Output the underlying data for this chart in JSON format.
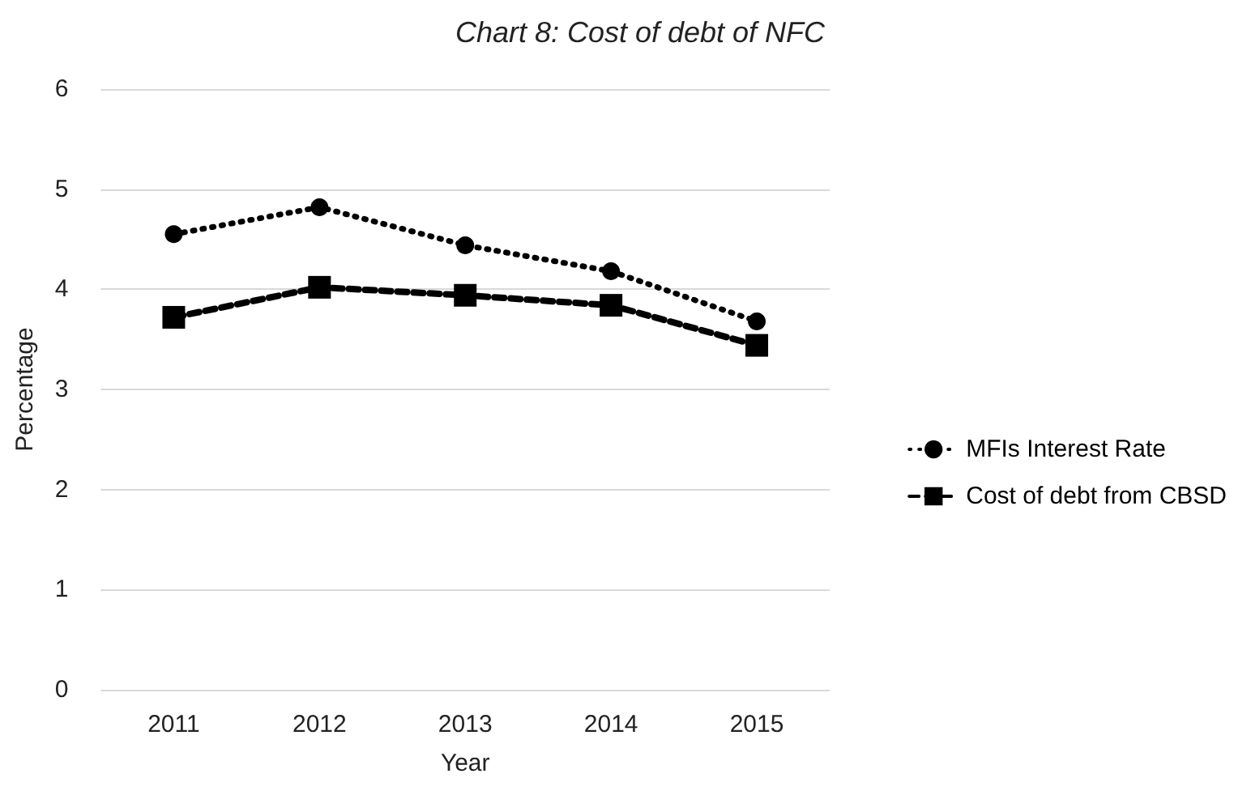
{
  "chart_data": {
    "type": "line",
    "title": "Chart 8: Cost of debt of NFC",
    "xlabel": "Year",
    "ylabel": "Percentage",
    "categories": [
      "2011",
      "2012",
      "2013",
      "2014",
      "2015"
    ],
    "series": [
      {
        "name": "MFIs Interest Rate",
        "color": "#000000",
        "marker": "circle",
        "line_style": "dotted",
        "values": [
          4.55,
          4.82,
          4.44,
          4.18,
          3.68
        ]
      },
      {
        "name": "Cost of debt from CBSD",
        "color": "#000000",
        "marker": "square",
        "line_style": "dashed",
        "values": [
          3.72,
          4.02,
          3.94,
          3.84,
          3.44
        ]
      }
    ],
    "ylim": [
      0,
      6
    ],
    "yticks": [
      0,
      1,
      2,
      3,
      4,
      5,
      6
    ],
    "grid": "y",
    "legend": "right"
  }
}
